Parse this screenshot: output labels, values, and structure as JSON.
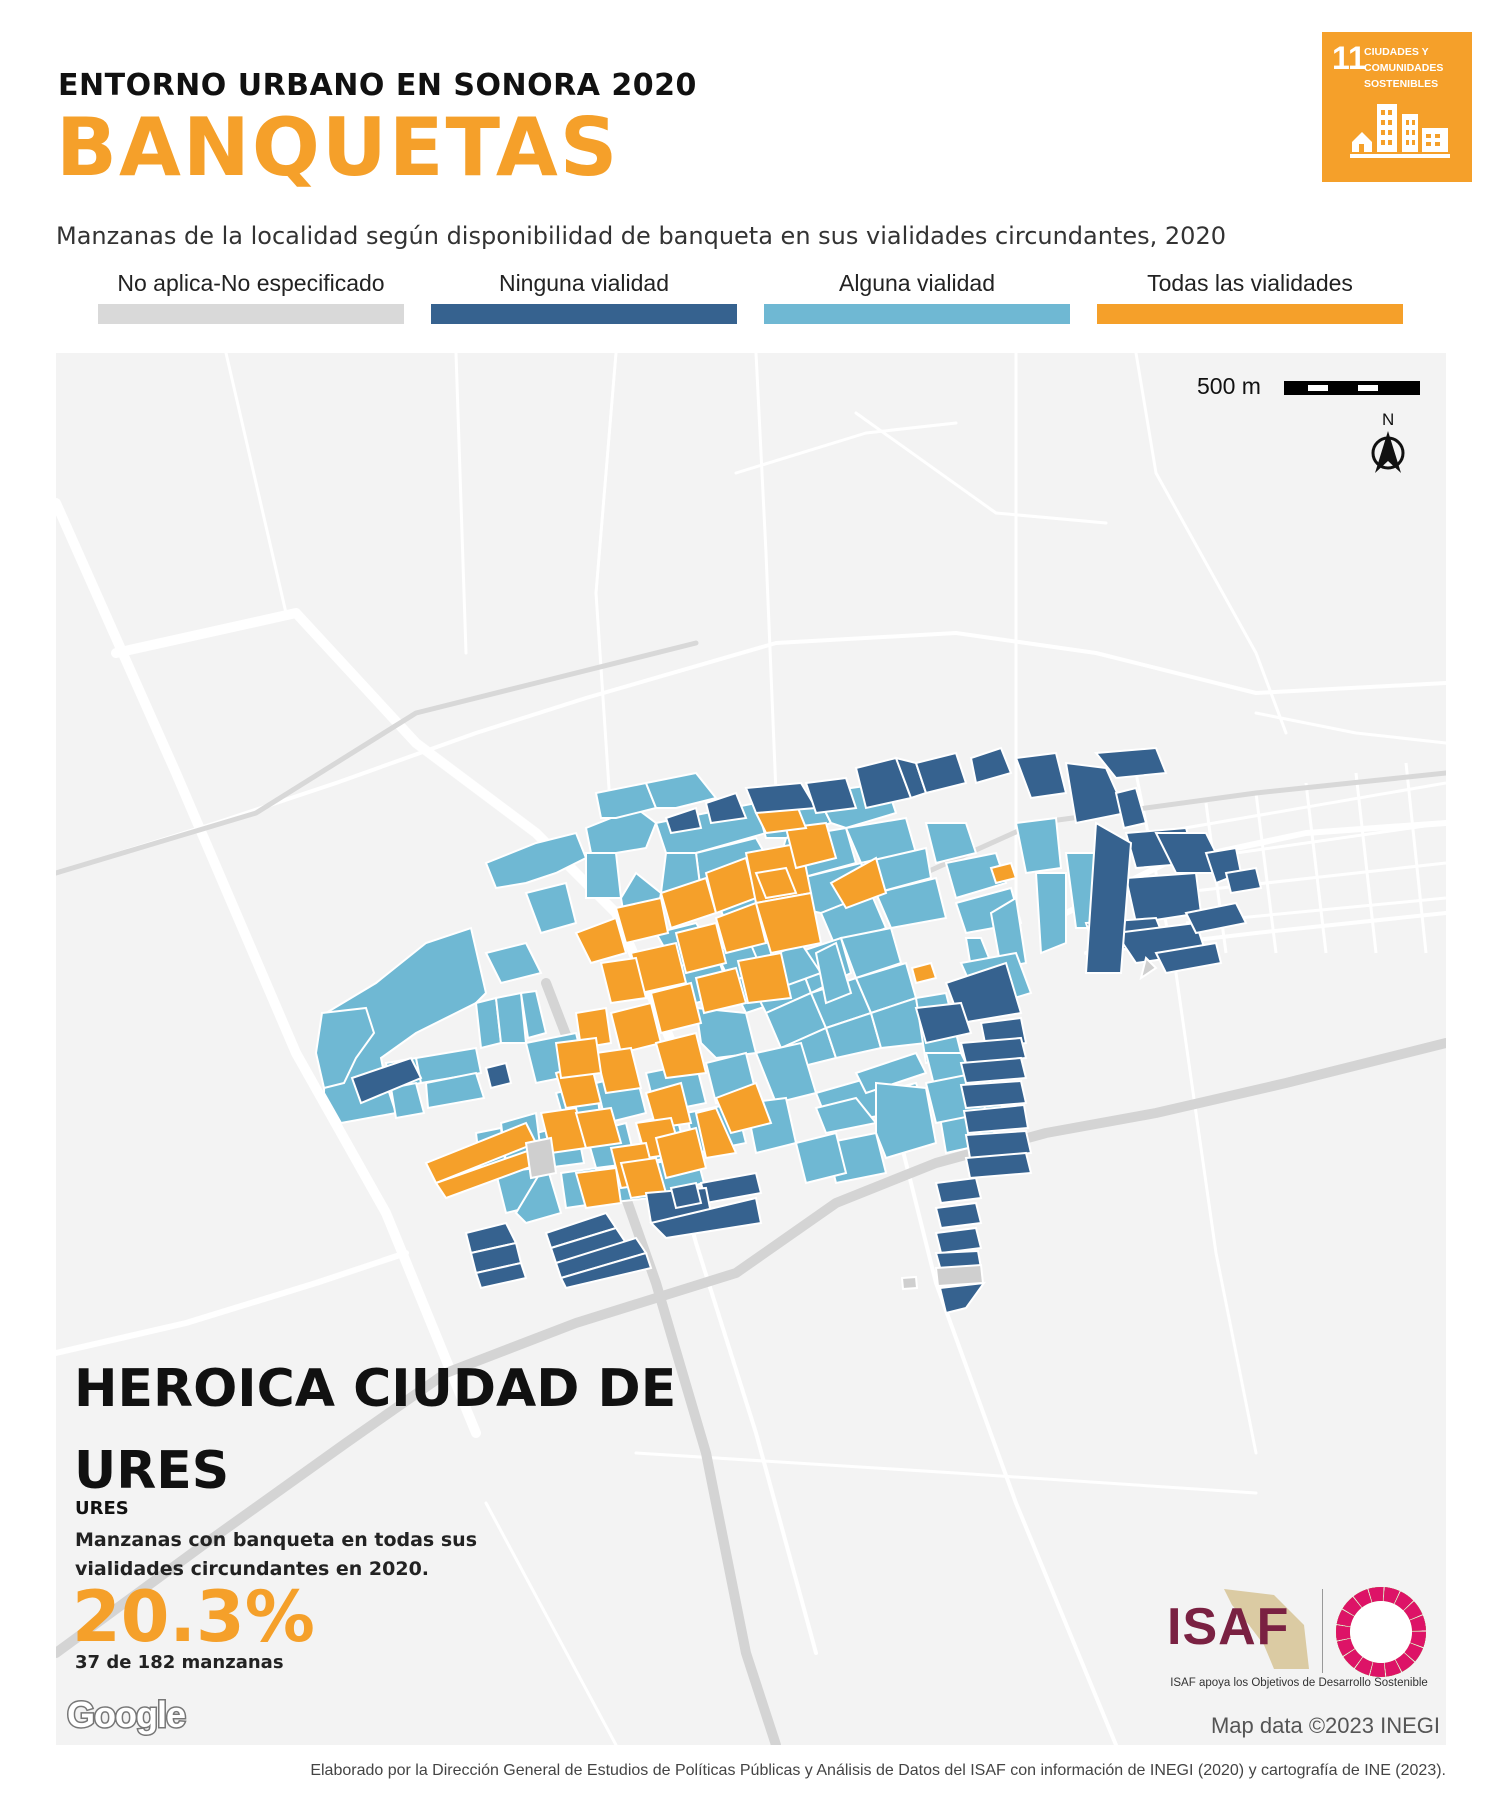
{
  "header": {
    "kicker": "ENTORNO URBANO EN SONORA 2020",
    "title": "BANQUETAS",
    "description": "Manzanas de la localidad según disponibilidad de banqueta en sus vialidades circundantes, 2020"
  },
  "legend": [
    {
      "label": "No aplica-No especificado",
      "color": "#d9d9d9"
    },
    {
      "label": "Ninguna vialidad",
      "color": "#36628f"
    },
    {
      "label": "Alguna vialidad",
      "color": "#6fb8d3"
    },
    {
      "label": "Todas las vialidades",
      "color": "#f5a02a"
    }
  ],
  "sdg_badge": {
    "number": "11",
    "text": "CIUDADES Y COMUNIDADES SOSTENIBLES",
    "color": "#f5a02a",
    "icon": "city-buildings-icon"
  },
  "map": {
    "scale_label": "500 m",
    "north_label": "N",
    "city_name": "HEROICA CIUDAD DE URES",
    "municipality": "URES",
    "stat_description": "Manzanas con banqueta en todas sus vialidades circundantes en 2020.",
    "stat_percent": "20.3%",
    "stat_count": "37 de 182 manzanas",
    "google_logo": "Google",
    "attribution": "Map data ©2023 INEGI"
  },
  "logos": {
    "isaf": "ISAF",
    "isaf_tagline": "ISAF apoya los Objetivos de Desarrollo Sostenible"
  },
  "footer": "Elaborado por la Dirección General de Estudios de Políticas Públicas y Análisis de Datos del ISAF con información de INEGI (2020) y cartografía de INE (2023)."
}
